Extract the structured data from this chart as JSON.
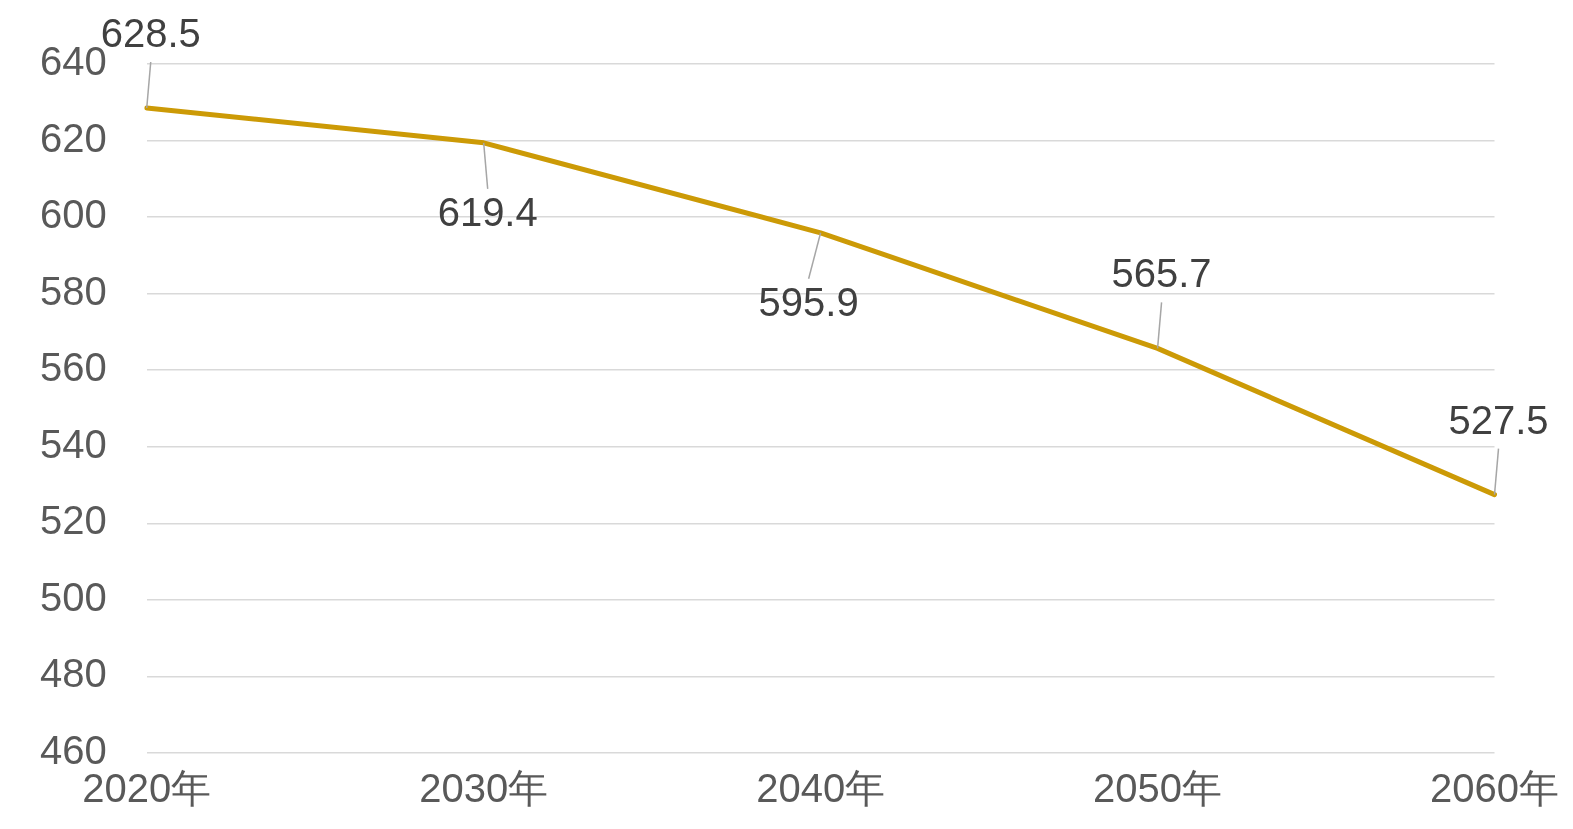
{
  "chart_data": {
    "type": "line",
    "categories": [
      "2020年",
      "2030年",
      "2040年",
      "2050年",
      "2060年"
    ],
    "series": [
      {
        "color": "#cc9a06",
        "values": [
          628.5,
          619.4,
          595.9,
          565.7,
          527.5
        ]
      }
    ],
    "ylim": [
      460,
      640
    ],
    "yticks": [
      460,
      480,
      500,
      520,
      540,
      560,
      580,
      600,
      620,
      640
    ],
    "grid": "y",
    "legend": false,
    "marker": "none",
    "line_style": "solid",
    "data_labels": true
  }
}
